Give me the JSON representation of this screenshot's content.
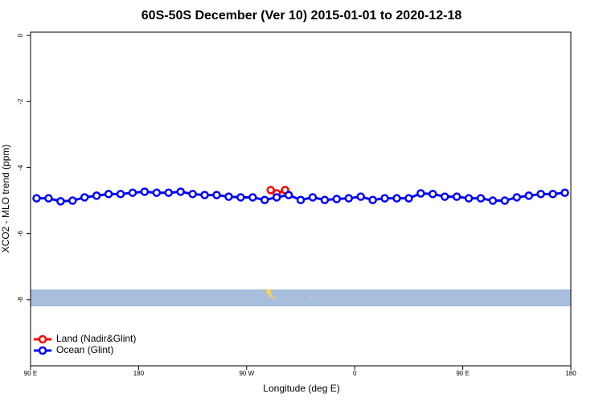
{
  "chart_data": {
    "type": "line",
    "title": "60S-50S December (Ver 10)   2015-01-01 to 2020-12-18",
    "x_label": "Longitude (deg E)",
    "y_label": "XCO2 - MLO trend (ppm)",
    "xlim": [
      90,
      540
    ],
    "ylim": [
      -10,
      0.1
    ],
    "xticks": [
      {
        "value": 90,
        "label": "90 E"
      },
      180,
      {
        "value": 270,
        "label": "90 W"
      },
      {
        "value": 360,
        "label": "0"
      },
      {
        "value": 450,
        "label": "90 E"
      },
      {
        "value": 540,
        "label": "180"
      }
    ],
    "yticks": [
      0,
      -2,
      -4,
      -6,
      -8
    ],
    "legend": "bottom-left",
    "series": [
      {
        "name": "Land (Nadir&Glint)",
        "color": "#ff0000",
        "x": [
          290,
          295,
          302
        ],
        "values": [
          -4.68,
          -4.78,
          -4.68
        ]
      },
      {
        "name": "Ocean (Glint)",
        "color": "#0000ff",
        "x": [
          95,
          105,
          115,
          125,
          135,
          145,
          155,
          165,
          175,
          185,
          195,
          205,
          215,
          225,
          235,
          245,
          255,
          265,
          275,
          285,
          295,
          305,
          315,
          325,
          335,
          345,
          355,
          365,
          375,
          385,
          395,
          405,
          415,
          425,
          435,
          445,
          455,
          465,
          475,
          485,
          495,
          505,
          515,
          525,
          535
        ],
        "values": [
          -4.93,
          -4.93,
          -5.02,
          -5.0,
          -4.9,
          -4.85,
          -4.8,
          -4.8,
          -4.76,
          -4.73,
          -4.76,
          -4.76,
          -4.73,
          -4.8,
          -4.83,
          -4.83,
          -4.88,
          -4.9,
          -4.9,
          -4.98,
          -4.9,
          -4.83,
          -4.98,
          -4.9,
          -4.98,
          -4.95,
          -4.93,
          -4.88,
          -4.98,
          -4.93,
          -4.93,
          -4.93,
          -4.78,
          -4.8,
          -4.88,
          -4.88,
          -4.93,
          -4.93,
          -5.0,
          -5.0,
          -4.9,
          -4.85,
          -4.8,
          -4.8,
          -4.76
        ]
      }
    ]
  }
}
